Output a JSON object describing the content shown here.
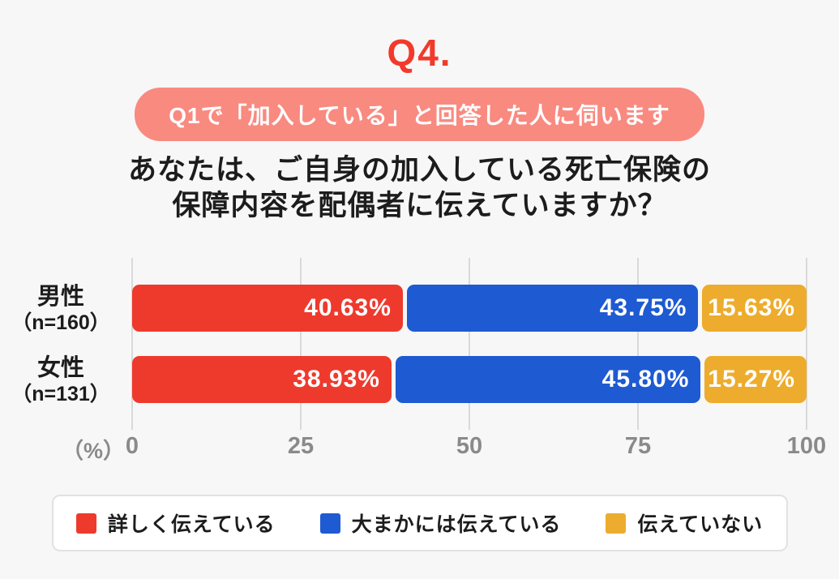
{
  "page": {
    "background_color": "#F7F7F7"
  },
  "header": {
    "question_number": "Q4.",
    "question_number_color": "#F23A2B",
    "condition_badge": "Q1で「加入している」と回答した人に伺います",
    "condition_badge_bg": "#F98A80",
    "title_line1": "あなたは、ご自身の加入している死亡保険の",
    "title_line2": "保障内容を配偶者に伝えていますか？"
  },
  "chart_data": {
    "type": "bar",
    "orientation": "horizontal",
    "stacked": true,
    "title": "あなたは、ご自身の加入している死亡保険の保障内容を配偶者に伝えていますか？",
    "categories": [
      "男性（n=160）",
      "女性（n=131）"
    ],
    "category_labels": [
      {
        "name": "男性",
        "n": "（n=160）"
      },
      {
        "name": "女性",
        "n": "（n=131）"
      }
    ],
    "series": [
      {
        "name": "詳しく伝えている",
        "color": "#EE3A2D",
        "values": [
          40.63,
          38.93
        ]
      },
      {
        "name": "大まかには伝えている",
        "color": "#1E5AD2",
        "values": [
          43.75,
          45.8
        ]
      },
      {
        "name": "伝えていない",
        "color": "#EDAC2D",
        "values": [
          15.63,
          15.27
        ]
      }
    ],
    "value_labels": [
      [
        "40.63%",
        "43.75%",
        "15.63%"
      ],
      [
        "38.93%",
        "45.80%",
        "15.27%"
      ]
    ],
    "xlabel": "（%）",
    "x_ticks": [
      "0",
      "25",
      "50",
      "75",
      "100"
    ],
    "xlim": [
      0,
      100
    ],
    "grid": true,
    "gridline_color": "#D9D9D9",
    "legend_position": "bottom"
  },
  "legend": {
    "items": [
      {
        "label": "詳しく伝えている",
        "color": "#EE3A2D"
      },
      {
        "label": "大まかには伝えている",
        "color": "#1E5AD2"
      },
      {
        "label": "伝えていない",
        "color": "#EDAC2D"
      }
    ]
  }
}
